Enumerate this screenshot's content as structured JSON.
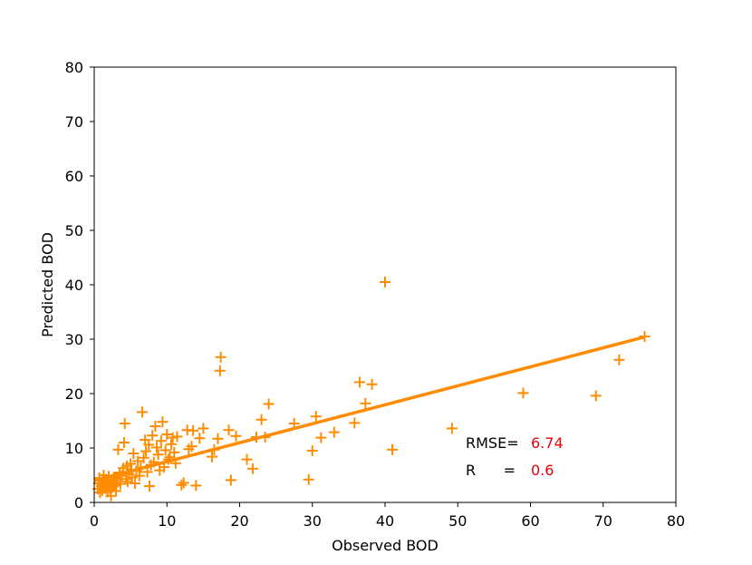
{
  "chart_data": {
    "type": "scatter",
    "xlabel": "Observed BOD",
    "ylabel": "Predicted BOD",
    "xlim": [
      0,
      80
    ],
    "ylim": [
      0,
      80
    ],
    "xticks": [
      0,
      10,
      20,
      30,
      40,
      50,
      60,
      70,
      80
    ],
    "yticks": [
      0,
      10,
      20,
      30,
      40,
      50,
      60,
      70,
      80
    ],
    "grid": false,
    "marker": "plus",
    "color": "#ff8c00",
    "stat_value_color": "#e8000b",
    "points": [
      [
        0.5,
        2.5
      ],
      [
        0.6,
        3.5
      ],
      [
        0.7,
        4.5
      ],
      [
        0.8,
        1.8
      ],
      [
        1.0,
        3.0
      ],
      [
        1.1,
        2.2
      ],
      [
        1.2,
        4.0
      ],
      [
        1.3,
        5.0
      ],
      [
        1.4,
        3.3
      ],
      [
        1.5,
        2.6
      ],
      [
        1.6,
        4.2
      ],
      [
        1.7,
        3.7
      ],
      [
        1.8,
        1.9
      ],
      [
        2.0,
        4.8
      ],
      [
        2.1,
        3.1
      ],
      [
        2.2,
        2.4
      ],
      [
        2.3,
        1.2
      ],
      [
        2.4,
        4.1
      ],
      [
        2.5,
        3.6
      ],
      [
        2.6,
        2.9
      ],
      [
        2.7,
        4.6
      ],
      [
        2.8,
        3.2
      ],
      [
        3.0,
        2.1
      ],
      [
        3.1,
        3.9
      ],
      [
        3.2,
        4.4
      ],
      [
        3.3,
        9.7
      ],
      [
        3.5,
        5.5
      ],
      [
        3.6,
        3.4
      ],
      [
        3.8,
        4.9
      ],
      [
        4.0,
        6.3
      ],
      [
        4.1,
        11.0
      ],
      [
        4.2,
        14.5
      ],
      [
        4.4,
        4.3
      ],
      [
        4.5,
        6.7
      ],
      [
        4.6,
        3.8
      ],
      [
        4.8,
        5.2
      ],
      [
        5.0,
        7.1
      ],
      [
        5.1,
        6.0
      ],
      [
        5.2,
        4.6
      ],
      [
        5.4,
        9.0
      ],
      [
        5.6,
        3.5
      ],
      [
        5.8,
        5.8
      ],
      [
        6.0,
        7.6
      ],
      [
        6.2,
        4.9
      ],
      [
        6.4,
        6.4
      ],
      [
        6.6,
        16.6
      ],
      [
        6.8,
        8.2
      ],
      [
        7.0,
        11.5
      ],
      [
        7.1,
        9.4
      ],
      [
        7.3,
        5.6
      ],
      [
        7.5,
        10.6
      ],
      [
        7.6,
        3.0
      ],
      [
        7.8,
        6.9
      ],
      [
        8.0,
        12.3
      ],
      [
        8.2,
        7.4
      ],
      [
        8.4,
        14.0
      ],
      [
        8.6,
        10.1
      ],
      [
        8.8,
        8.8
      ],
      [
        9.0,
        5.9
      ],
      [
        9.2,
        11.3
      ],
      [
        9.4,
        14.8
      ],
      [
        9.6,
        6.5
      ],
      [
        9.8,
        9.6
      ],
      [
        10.0,
        12.5
      ],
      [
        10.2,
        7.9
      ],
      [
        10.4,
        8.3
      ],
      [
        10.6,
        10.7
      ],
      [
        10.8,
        11.9
      ],
      [
        11.0,
        9.2
      ],
      [
        11.2,
        7.2
      ],
      [
        11.4,
        12.1
      ],
      [
        12.0,
        3.2
      ],
      [
        12.3,
        3.6
      ],
      [
        12.8,
        13.3
      ],
      [
        13.0,
        9.8
      ],
      [
        13.4,
        10.3
      ],
      [
        13.6,
        13.2
      ],
      [
        14.0,
        3.1
      ],
      [
        14.5,
        11.8
      ],
      [
        15.0,
        13.6
      ],
      [
        16.2,
        8.4
      ],
      [
        16.5,
        9.7
      ],
      [
        17.0,
        11.7
      ],
      [
        17.3,
        24.2
      ],
      [
        17.4,
        26.7
      ],
      [
        18.5,
        13.3
      ],
      [
        18.8,
        4.1
      ],
      [
        19.5,
        12.2
      ],
      [
        21.0,
        7.9
      ],
      [
        21.8,
        6.2
      ],
      [
        22.3,
        12.0
      ],
      [
        23.0,
        15.2
      ],
      [
        23.5,
        12.0
      ],
      [
        24.0,
        18.1
      ],
      [
        27.5,
        14.5
      ],
      [
        29.5,
        4.2
      ],
      [
        30.0,
        9.5
      ],
      [
        30.5,
        15.8
      ],
      [
        31.2,
        11.9
      ],
      [
        33.0,
        12.9
      ],
      [
        35.8,
        14.6
      ],
      [
        36.5,
        22.1
      ],
      [
        37.3,
        18.2
      ],
      [
        38.2,
        21.7
      ],
      [
        40.0,
        40.5
      ],
      [
        41.0,
        9.7
      ],
      [
        49.2,
        13.6
      ],
      [
        59.0,
        20.1
      ],
      [
        69.0,
        19.6
      ],
      [
        72.2,
        26.2
      ],
      [
        75.7,
        30.5
      ]
    ],
    "fit_line": {
      "x": [
        0,
        75.7
      ],
      "y": [
        4.0,
        30.4
      ]
    },
    "stats": {
      "rmse_label": "RMSE=",
      "rmse_value": "6.74",
      "r_label": "R      =",
      "r_value": "0.6"
    }
  }
}
